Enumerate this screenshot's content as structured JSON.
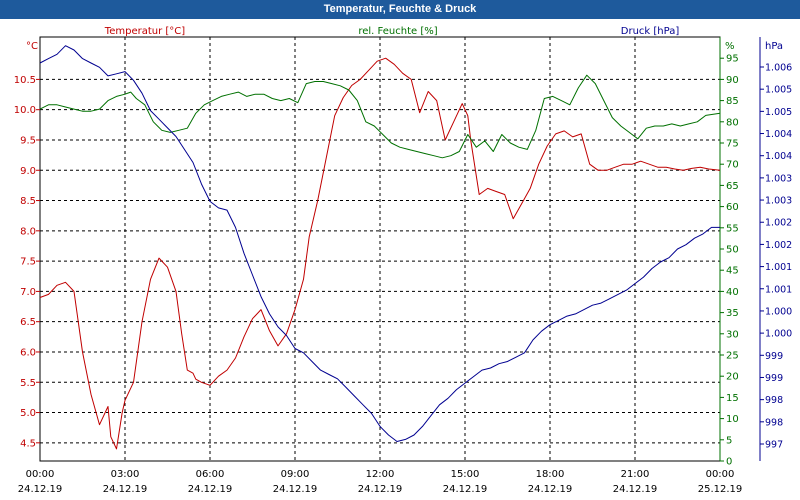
{
  "window": {
    "title": "Temperatur, Feuchte & Druck",
    "bar_color": "#1e5a9c"
  },
  "chart_data": {
    "type": "line",
    "title": "Temperatur, Feuchte & Druck",
    "grid": true,
    "x_ticks": [
      {
        "time": "00:00",
        "date": "24.12.19"
      },
      {
        "time": "03:00",
        "date": "24.12.19"
      },
      {
        "time": "06:00",
        "date": "24.12.19"
      },
      {
        "time": "09:00",
        "date": "24.12.19"
      },
      {
        "time": "12:00",
        "date": "24.12.19"
      },
      {
        "time": "15:00",
        "date": "24.12.19"
      },
      {
        "time": "18:00",
        "date": "24.12.19"
      },
      {
        "time": "21:00",
        "date": "24.12.19"
      },
      {
        "time": "00:00",
        "date": "25.12.19"
      }
    ],
    "axes": {
      "temperature": {
        "label": "Temperatur [°C]",
        "unit": "°C",
        "color": "#c00000",
        "range": [
          4.2,
          11.2
        ],
        "ticks": [
          "10.5",
          "10.0",
          "9.5",
          "9.0",
          "8.5",
          "8.0",
          "7.5",
          "7.0",
          "6.5",
          "6.0",
          "5.5",
          "5.0",
          "4.5"
        ]
      },
      "humidity": {
        "label": "rel. Feuchte [%]",
        "unit": "%",
        "color": "#007000",
        "range": [
          0,
          100
        ],
        "ticks": [
          "95",
          "90",
          "85",
          "80",
          "75",
          "70",
          "65",
          "60",
          "55",
          "50",
          "45",
          "40",
          "35",
          "30",
          "25",
          "20",
          "15",
          "10",
          "5",
          "0"
        ]
      },
      "pressure": {
        "label": "Druck [hPa]",
        "unit": "hPa",
        "color": "#000090",
        "range": [
          996.6,
          1006.4
        ],
        "ticks": [
          "1.006",
          "1.005",
          "1.005",
          "1.004",
          "1.004",
          "1.003",
          "1.003",
          "1.002",
          "1.002",
          "1.001",
          "1.001",
          "1.000",
          "1.000",
          "999",
          "999",
          "998",
          "998",
          "997"
        ]
      }
    },
    "series": [
      {
        "name": "Temperatur [°C]",
        "axis": "temperature",
        "color": "#c00000",
        "x": [
          0,
          0.3,
          0.6,
          0.9,
          1.2,
          1.5,
          1.8,
          2.1,
          2.4,
          2.5,
          2.7,
          2.9,
          3.0,
          3.1,
          3.3,
          3.6,
          3.9,
          4.2,
          4.5,
          4.8,
          5.0,
          5.2,
          5.4,
          5.5,
          5.7,
          6.0,
          6.3,
          6.6,
          6.9,
          7.2,
          7.5,
          7.8,
          8.1,
          8.4,
          8.7,
          9.0,
          9.3,
          9.5,
          9.8,
          10.1,
          10.4,
          10.7,
          11.0,
          11.3,
          11.6,
          11.9,
          12.2,
          12.5,
          12.8,
          13.1,
          13.4,
          13.7,
          14.0,
          14.3,
          14.6,
          14.9,
          15.1,
          15.2,
          15.5,
          15.8,
          16.1,
          16.4,
          16.7,
          17.0,
          17.3,
          17.6,
          17.9,
          18.2,
          18.5,
          18.8,
          19.1,
          19.4,
          19.7,
          20.0,
          20.3,
          20.6,
          20.9,
          21.2,
          21.5,
          21.8,
          22.1,
          22.4,
          22.7,
          23.0,
          23.3,
          23.6,
          24.0
        ],
        "values": [
          6.9,
          6.95,
          7.1,
          7.15,
          7.0,
          6.0,
          5.3,
          4.8,
          5.1,
          4.6,
          4.4,
          5.0,
          5.2,
          5.3,
          5.5,
          6.5,
          7.2,
          7.55,
          7.4,
          7.0,
          6.3,
          5.7,
          5.65,
          5.55,
          5.5,
          5.45,
          5.6,
          5.7,
          5.9,
          6.25,
          6.55,
          6.7,
          6.35,
          6.1,
          6.3,
          6.7,
          7.2,
          7.9,
          8.5,
          9.2,
          9.9,
          10.2,
          10.4,
          10.5,
          10.65,
          10.8,
          10.85,
          10.75,
          10.6,
          10.5,
          9.95,
          10.3,
          10.15,
          9.5,
          9.8,
          10.1,
          9.9,
          9.5,
          8.6,
          8.7,
          8.65,
          8.6,
          8.2,
          8.45,
          8.7,
          9.1,
          9.4,
          9.6,
          9.65,
          9.55,
          9.6,
          9.1,
          9.0,
          9.0,
          9.05,
          9.1,
          9.1,
          9.15,
          9.1,
          9.05,
          9.05,
          9.02,
          9.0,
          9.03,
          9.05,
          9.02,
          9.0
        ]
      },
      {
        "name": "rel. Feuchte [%]",
        "axis": "humidity",
        "color": "#007000",
        "x": [
          0,
          0.3,
          0.6,
          0.9,
          1.2,
          1.5,
          1.8,
          2.1,
          2.4,
          2.7,
          3.0,
          3.2,
          3.4,
          3.7,
          4.0,
          4.3,
          4.6,
          4.9,
          5.2,
          5.5,
          5.8,
          6.1,
          6.4,
          6.7,
          7.0,
          7.3,
          7.6,
          7.9,
          8.2,
          8.5,
          8.8,
          9.1,
          9.4,
          9.7,
          10.0,
          10.3,
          10.6,
          10.9,
          11.2,
          11.5,
          11.8,
          12.1,
          12.4,
          12.7,
          13.0,
          13.3,
          13.6,
          13.9,
          14.2,
          14.5,
          14.8,
          15.1,
          15.4,
          15.7,
          16.0,
          16.3,
          16.6,
          16.9,
          17.2,
          17.5,
          17.8,
          18.1,
          18.4,
          18.7,
          19.0,
          19.3,
          19.6,
          19.9,
          20.2,
          20.5,
          20.8,
          21.1,
          21.4,
          21.7,
          22.0,
          22.3,
          22.6,
          22.9,
          23.2,
          23.5,
          24.0
        ],
        "values": [
          83,
          84,
          84,
          83.5,
          83,
          82.5,
          82.5,
          83,
          85,
          86,
          86.5,
          87,
          85.5,
          84,
          80,
          78,
          77.5,
          78,
          78.5,
          82,
          84,
          85,
          86,
          86.5,
          87,
          86,
          86.5,
          86.5,
          85.5,
          85,
          85.5,
          84.5,
          89,
          89.5,
          89.5,
          89,
          88.5,
          87.5,
          85,
          80,
          79,
          77,
          75,
          74,
          73.5,
          73,
          72.5,
          72,
          71.5,
          72,
          73,
          77,
          74,
          75.5,
          73,
          77,
          75,
          74,
          73.5,
          78,
          85.5,
          86,
          85,
          84,
          88,
          91,
          89,
          85,
          81,
          79,
          77.5,
          76,
          78.5,
          79,
          79,
          79.5,
          79,
          79.5,
          80,
          81.5,
          82
        ]
      },
      {
        "name": "Druck [hPa]",
        "axis": "pressure",
        "color": "#000090",
        "x": [
          0,
          0.3,
          0.6,
          0.9,
          1.2,
          1.5,
          1.8,
          2.1,
          2.4,
          2.7,
          3.0,
          3.3,
          3.6,
          3.9,
          4.2,
          4.5,
          4.8,
          5.1,
          5.4,
          5.7,
          6.0,
          6.3,
          6.6,
          6.9,
          7.2,
          7.5,
          7.8,
          8.1,
          8.4,
          8.7,
          9.0,
          9.3,
          9.6,
          9.9,
          10.2,
          10.5,
          10.8,
          11.1,
          11.4,
          11.7,
          12.0,
          12.3,
          12.6,
          12.9,
          13.2,
          13.5,
          13.8,
          14.1,
          14.4,
          14.7,
          15.0,
          15.3,
          15.6,
          15.9,
          16.2,
          16.5,
          16.8,
          17.1,
          17.4,
          17.7,
          18.0,
          18.3,
          18.6,
          18.9,
          19.2,
          19.5,
          19.8,
          20.1,
          20.4,
          20.7,
          21.0,
          21.3,
          21.6,
          21.9,
          22.2,
          22.5,
          22.8,
          23.1,
          23.4,
          23.7,
          24.0
        ],
        "values": [
          1005.8,
          1005.9,
          1006.0,
          1006.2,
          1006.1,
          1005.9,
          1005.8,
          1005.7,
          1005.5,
          1005.55,
          1005.6,
          1005.4,
          1005.1,
          1004.7,
          1004.5,
          1004.3,
          1004.1,
          1003.8,
          1003.5,
          1003.0,
          1002.6,
          1002.45,
          1002.4,
          1002.0,
          1001.4,
          1000.9,
          1000.4,
          1000.0,
          999.7,
          999.5,
          999.2,
          999.1,
          998.9,
          998.7,
          998.6,
          998.5,
          998.3,
          998.1,
          997.9,
          997.7,
          997.4,
          997.2,
          997.05,
          997.1,
          997.2,
          997.4,
          997.65,
          997.9,
          998.05,
          998.25,
          998.4,
          998.55,
          998.7,
          998.75,
          998.85,
          998.9,
          999.0,
          999.1,
          999.4,
          999.6,
          999.75,
          999.85,
          999.95,
          1000.0,
          1000.1,
          1000.2,
          1000.25,
          1000.35,
          1000.45,
          1000.55,
          1000.7,
          1000.85,
          1001.05,
          1001.2,
          1001.3,
          1001.5,
          1001.6,
          1001.75,
          1001.85,
          1002.0,
          1002.0
        ]
      }
    ]
  }
}
